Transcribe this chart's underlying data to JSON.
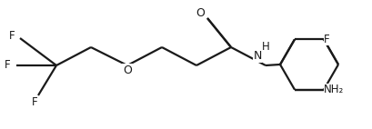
{
  "bg_color": "#ffffff",
  "line_color": "#1a1a1a",
  "bond_lw": 1.6,
  "figsize": [
    4.1,
    1.42
  ],
  "dpi": 100,
  "xlim": [
    0.0,
    4.1
  ],
  "ylim": [
    0.0,
    1.42
  ]
}
